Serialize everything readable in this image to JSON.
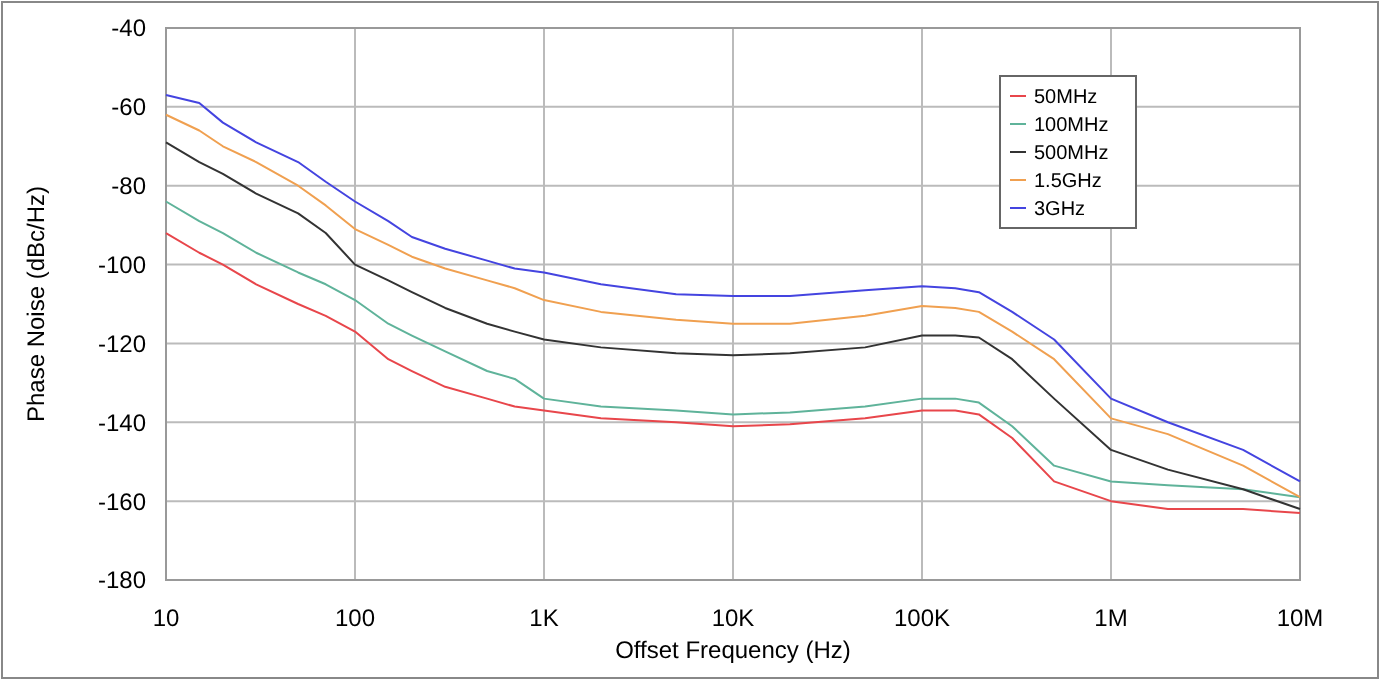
{
  "chart_data": {
    "type": "line",
    "xlabel": "Offset Frequency (Hz)",
    "ylabel": "Phase Noise (dBc/Hz)",
    "log": "x",
    "x": [
      10,
      15,
      20,
      30,
      50,
      70,
      100,
      150,
      200,
      300,
      500,
      700,
      1000,
      2000,
      5000,
      10000,
      20000,
      50000,
      100000,
      150000,
      200000,
      300000,
      500000,
      1000000,
      2000000,
      5000000,
      10000000
    ],
    "series": [
      {
        "name": "50MHz",
        "color": "#e8464b",
        "values": [
          -92,
          -97,
          -100,
          -105,
          -110,
          -113,
          -117,
          -124,
          -127,
          -131,
          -134,
          -136,
          -137,
          -139,
          -140,
          -141,
          -140.5,
          -139,
          -137,
          -137,
          -138,
          -144,
          -155,
          -160,
          -162,
          -162,
          -163
        ]
      },
      {
        "name": "100MHz",
        "color": "#5fb39a",
        "values": [
          -84,
          -89,
          -92,
          -97,
          -102,
          -105,
          -109,
          -115,
          -118,
          -122,
          -127,
          -129,
          -134,
          -136,
          -137,
          -138,
          -137.5,
          -136,
          -134,
          -134,
          -135,
          -141,
          -151,
          -155,
          -156,
          -157,
          -159
        ]
      },
      {
        "name": "500MHz",
        "color": "#333333",
        "values": [
          -69,
          -74,
          -77,
          -82,
          -87,
          -92,
          -100,
          -104,
          -107,
          -111,
          -115,
          -117,
          -119,
          -121,
          -122.5,
          -123,
          -122.5,
          -121,
          -118,
          -118,
          -118.5,
          -124,
          -134,
          -147,
          -152,
          -157,
          -162
        ]
      },
      {
        "name": "1.5GHz",
        "color": "#f0a050",
        "values": [
          -62,
          -66,
          -70,
          -74,
          -80,
          -85,
          -91,
          -95,
          -98,
          -101,
          -104,
          -106,
          -109,
          -112,
          -114,
          -115,
          -115,
          -113,
          -110.5,
          -111,
          -112,
          -117,
          -124,
          -139,
          -143,
          -151,
          -159
        ]
      },
      {
        "name": "3GHz",
        "color": "#4444e0",
        "values": [
          -57,
          -59,
          -64,
          -69,
          -74,
          -79,
          -84,
          -89,
          -93,
          -96,
          -99,
          -101,
          -102,
          -105,
          -107.5,
          -108,
          -108,
          -106.5,
          -105.5,
          -106,
          -107,
          -112,
          -119,
          -134,
          -140,
          -147,
          -155
        ]
      }
    ],
    "xlim": [
      10,
      10000000
    ],
    "xticks": [
      10,
      100,
      {
        "value": 1000,
        "label": "1K"
      },
      {
        "value": 10000,
        "label": "10K"
      },
      {
        "value": 100000,
        "label": "100K"
      },
      {
        "value": 1000000,
        "label": "1M"
      },
      {
        "value": 10000000,
        "label": "10M"
      }
    ],
    "ylim": [
      -180,
      -40
    ],
    "yticks": [
      -180,
      -160,
      -140,
      -120,
      -100,
      -80,
      -60,
      -40
    ],
    "grid": true,
    "legend": "top right",
    "line_style": "solid",
    "marker": "none"
  }
}
